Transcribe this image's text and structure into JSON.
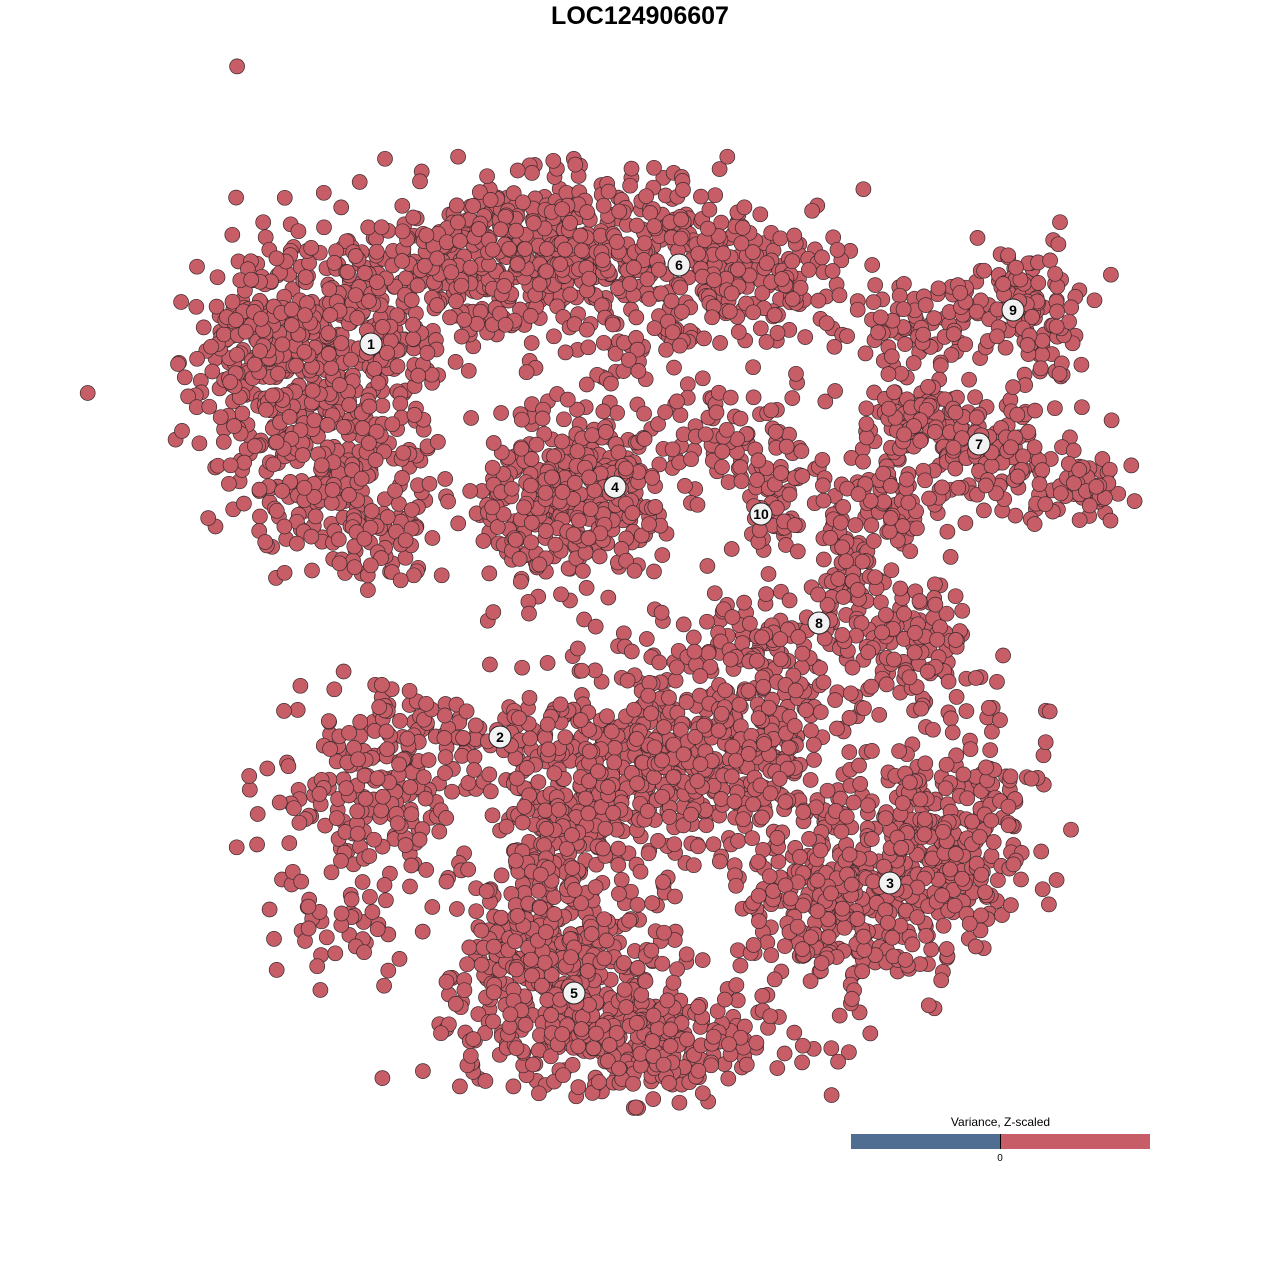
{
  "chart_data": {
    "type": "scatter",
    "title": "LOC124906607",
    "xlabel": "",
    "ylabel": "",
    "grid": false,
    "axes_visible": false,
    "point_color": "#c65d67",
    "point_stroke": "#3a2a2c",
    "clusters": [
      {
        "label": "1",
        "center": [
          -26.9,
          29.6
        ]
      },
      {
        "label": "2",
        "center": [
          -14.0,
          -9.7
        ]
      },
      {
        "label": "3",
        "center": [
          25.0,
          -24.3
        ]
      },
      {
        "label": "4",
        "center": [
          -2.5,
          15.3
        ]
      },
      {
        "label": "5",
        "center": [
          -6.6,
          -35.3
        ]
      },
      {
        "label": "6",
        "center": [
          3.9,
          37.5
        ]
      },
      {
        "label": "7",
        "center": [
          33.9,
          19.6
        ]
      },
      {
        "label": "8",
        "center": [
          17.9,
          1.7
        ]
      },
      {
        "label": "9",
        "center": [
          37.3,
          33.0
        ]
      },
      {
        "label": "10",
        "center": [
          12.1,
          12.6
        ]
      }
    ],
    "legend": {
      "title": "Variance, Z-scaled",
      "placement": "bottom-right",
      "tick_label": "0",
      "low_color": "#506e91",
      "high_color": "#c65d67"
    }
  }
}
